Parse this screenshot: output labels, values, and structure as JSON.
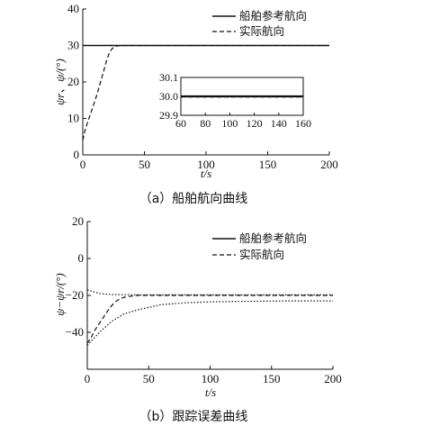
{
  "chart_data": [
    {
      "type": "line",
      "caption": "（a）船舶航向曲线",
      "xlabel": "t/s",
      "ylabel": "ψr、ψ/(°)",
      "xlim": [
        0,
        200
      ],
      "ylim": [
        0,
        40
      ],
      "xticks": [
        "0",
        "50",
        "100",
        "150",
        "200"
      ],
      "yticks": [
        "0",
        "10",
        "20",
        "30",
        "40"
      ],
      "legend_position": "top-right",
      "series": [
        {
          "name": "船舶参考航向",
          "style": "solid",
          "x": [
            0,
            10,
            20,
            30,
            50,
            100,
            150,
            200
          ],
          "y": [
            30,
            30,
            30,
            30,
            30,
            30,
            30,
            30
          ]
        },
        {
          "name": "实际航向",
          "style": "dashed",
          "x": [
            0,
            2,
            5,
            8,
            11,
            14,
            17,
            19,
            21,
            23,
            25,
            28,
            35,
            50,
            100,
            150,
            200
          ],
          "y": [
            4,
            7,
            10,
            13,
            16,
            19.5,
            23,
            25.5,
            27.5,
            28.8,
            29.5,
            29.9,
            30,
            30,
            30,
            30,
            30
          ]
        }
      ],
      "inset": {
        "xlim": [
          60,
          160
        ],
        "ylim": [
          29.9,
          30.1
        ],
        "xticks": [
          "60",
          "80",
          "100",
          "120",
          "140",
          "160"
        ],
        "yticks": [
          "29.9",
          "30.0",
          "30.1"
        ],
        "series": [
          {
            "name": "船舶参考航向",
            "style": "solid",
            "x": [
              60,
              160
            ],
            "y": [
              30,
              30
            ]
          },
          {
            "name": "实际航向",
            "style": "dashed",
            "x": [
              60,
              160
            ],
            "y": [
              29.997,
              29.997
            ]
          }
        ]
      }
    },
    {
      "type": "line",
      "caption": "（b）跟踪误差曲线",
      "xlabel": "t/s",
      "ylabel": "ψ−ψr/(°)",
      "xlim": [
        0,
        200
      ],
      "ylim": [
        -60,
        20
      ],
      "xticks": [
        "0",
        "50",
        "100",
        "150",
        "200"
      ],
      "yticks": [
        "20",
        "0",
        "−20",
        "−40"
      ],
      "legend_position": "top-right",
      "series": [
        {
          "name": "船舶参考航向",
          "style": "solid",
          "x": [],
          "y": []
        },
        {
          "name": "实际航向",
          "style": "dashed",
          "x": [
            0,
            3,
            6,
            10,
            14,
            18,
            22,
            26,
            30,
            40,
            60,
            100,
            150,
            200
          ],
          "y": [
            -46,
            -43,
            -39,
            -35,
            -31,
            -27,
            -24,
            -22,
            -21,
            -20,
            -20,
            -20,
            -20,
            -20
          ]
        },
        {
          "name": "",
          "style": "dotted",
          "x": [
            0,
            10,
            20,
            30,
            40,
            60,
            80,
            100,
            130,
            160,
            200
          ],
          "y": [
            -47,
            -40,
            -34,
            -30,
            -28,
            -25,
            -24,
            -23.5,
            -23.2,
            -23,
            -23
          ]
        },
        {
          "name": "",
          "style": "dotted",
          "x": [
            0,
            5,
            10,
            20,
            40,
            80,
            200
          ],
          "y": [
            -17,
            -18,
            -19,
            -19.5,
            -19.7,
            -19.7,
            -19.7
          ]
        }
      ]
    }
  ]
}
